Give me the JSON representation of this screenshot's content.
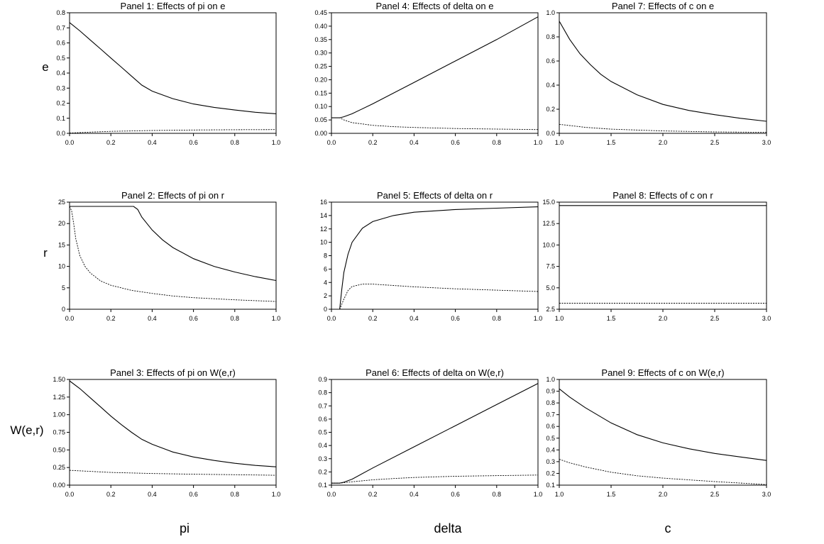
{
  "row_labels": [
    "e",
    "r",
    "W(e,r)"
  ],
  "column_labels": [
    "pi",
    "delta",
    "c"
  ],
  "chart_data": [
    {
      "type": "line",
      "title": "Panel 1: Effects of pi on e",
      "xlim": [
        0,
        1
      ],
      "ylim": [
        0,
        0.8
      ],
      "xticks": [
        "0.0",
        "0.2",
        "0.4",
        "0.6",
        "0.8",
        "1.0"
      ],
      "yticks": [
        "0.0",
        "0.1",
        "0.2",
        "0.3",
        "0.4",
        "0.5",
        "0.6",
        "0.7",
        "0.8"
      ],
      "series": [
        {
          "style": "solid",
          "x": [
            0,
            0.05,
            0.1,
            0.15,
            0.2,
            0.25,
            0.3,
            0.35,
            0.4,
            0.5,
            0.6,
            0.7,
            0.8,
            0.9,
            1.0
          ],
          "y": [
            0.735,
            0.68,
            0.62,
            0.56,
            0.5,
            0.44,
            0.38,
            0.32,
            0.28,
            0.23,
            0.195,
            0.172,
            0.155,
            0.14,
            0.13
          ]
        },
        {
          "style": "dashed",
          "x": [
            0,
            0.1,
            0.2,
            0.4,
            0.6,
            0.8,
            1.0
          ],
          "y": [
            0.002,
            0.008,
            0.013,
            0.019,
            0.022,
            0.024,
            0.025
          ]
        }
      ]
    },
    {
      "type": "line",
      "title": "Panel 2: Effects of pi on r",
      "xlim": [
        0,
        1
      ],
      "ylim": [
        0,
        25
      ],
      "xticks": [
        "0.0",
        "0.2",
        "0.4",
        "0.6",
        "0.8",
        "1.0"
      ],
      "yticks": [
        "0",
        "5",
        "10",
        "15",
        "20",
        "25"
      ],
      "series": [
        {
          "style": "solid",
          "x": [
            0,
            0.1,
            0.2,
            0.3,
            0.31,
            0.33,
            0.35,
            0.4,
            0.45,
            0.5,
            0.6,
            0.7,
            0.8,
            0.9,
            1.0
          ],
          "y": [
            24,
            24,
            24,
            24,
            24,
            23.3,
            21.5,
            18.5,
            16.2,
            14.4,
            11.8,
            10,
            8.7,
            7.6,
            6.7
          ]
        },
        {
          "style": "dashed",
          "x": [
            0,
            0.01,
            0.02,
            0.03,
            0.05,
            0.075,
            0.1,
            0.15,
            0.2,
            0.3,
            0.4,
            0.5,
            0.6,
            0.8,
            1.0
          ],
          "y": [
            24,
            23,
            20,
            16.5,
            12.5,
            10,
            8.5,
            6.6,
            5.6,
            4.4,
            3.7,
            3.1,
            2.7,
            2.2,
            1.8
          ]
        }
      ]
    },
    {
      "type": "line",
      "title": "Panel 3: Effects of pi on W(e,r)",
      "xlim": [
        0,
        1
      ],
      "ylim": [
        0,
        1.5
      ],
      "xticks": [
        "0.0",
        "0.2",
        "0.4",
        "0.6",
        "0.8",
        "1.0"
      ],
      "yticks": [
        "0.00",
        "0.25",
        "0.50",
        "0.75",
        "1.00",
        "1.25",
        "1.50"
      ],
      "series": [
        {
          "style": "solid",
          "x": [
            0,
            0.05,
            0.1,
            0.15,
            0.2,
            0.25,
            0.3,
            0.35,
            0.4,
            0.5,
            0.6,
            0.7,
            0.8,
            0.9,
            1.0
          ],
          "y": [
            1.48,
            1.37,
            1.24,
            1.11,
            0.98,
            0.86,
            0.75,
            0.65,
            0.58,
            0.47,
            0.4,
            0.35,
            0.31,
            0.28,
            0.26
          ]
        },
        {
          "style": "dashed",
          "x": [
            0,
            0.2,
            0.4,
            0.6,
            0.8,
            1.0
          ],
          "y": [
            0.21,
            0.18,
            0.165,
            0.155,
            0.148,
            0.14
          ]
        }
      ]
    },
    {
      "type": "line",
      "title": "Panel 4: Effects of delta on e",
      "xlim": [
        0,
        1
      ],
      "ylim": [
        0,
        0.45
      ],
      "xticks": [
        "0.0",
        "0.2",
        "0.4",
        "0.6",
        "0.8",
        "1.0"
      ],
      "yticks": [
        "0.00",
        "0.05",
        "0.10",
        "0.15",
        "0.20",
        "0.25",
        "0.30",
        "0.35",
        "0.40",
        "0.45"
      ],
      "series": [
        {
          "style": "solid",
          "x": [
            0,
            0.04,
            0.06,
            0.1,
            0.2,
            0.4,
            0.6,
            0.8,
            1.0
          ],
          "y": [
            0.058,
            0.058,
            0.062,
            0.073,
            0.11,
            0.19,
            0.27,
            0.35,
            0.435
          ]
        },
        {
          "style": "dashed",
          "x": [
            0,
            0.04,
            0.06,
            0.1,
            0.2,
            0.3,
            0.4,
            0.6,
            0.8,
            1.0
          ],
          "y": [
            0.058,
            0.058,
            0.05,
            0.04,
            0.03,
            0.025,
            0.022,
            0.018,
            0.016,
            0.014
          ]
        }
      ]
    },
    {
      "type": "line",
      "title": "Panel 5: Effects of delta on r",
      "xlim": [
        0,
        1
      ],
      "ylim": [
        0,
        16
      ],
      "xticks": [
        "0.0",
        "0.2",
        "0.4",
        "0.6",
        "0.8",
        "1.0"
      ],
      "yticks": [
        "0",
        "2",
        "4",
        "6",
        "8",
        "10",
        "12",
        "14",
        "16"
      ],
      "series": [
        {
          "style": "solid",
          "x": [
            0.04,
            0.05,
            0.06,
            0.08,
            0.1,
            0.15,
            0.2,
            0.3,
            0.4,
            0.6,
            0.8,
            1.0
          ],
          "y": [
            0,
            3,
            5.5,
            8.2,
            10,
            12.1,
            13.1,
            14,
            14.5,
            14.9,
            15.1,
            15.3
          ]
        },
        {
          "style": "dashed",
          "x": [
            0.04,
            0.06,
            0.08,
            0.1,
            0.15,
            0.2,
            0.3,
            0.4,
            0.6,
            0.8,
            1.0
          ],
          "y": [
            0,
            1.5,
            2.8,
            3.4,
            3.75,
            3.75,
            3.55,
            3.35,
            3.05,
            2.85,
            2.65
          ]
        }
      ]
    },
    {
      "type": "line",
      "title": "Panel 6: Effects of delta on W(e,r)",
      "xlim": [
        0,
        1
      ],
      "ylim": [
        0.1,
        0.9
      ],
      "xticks": [
        "0.0",
        "0.2",
        "0.4",
        "0.6",
        "0.8",
        "1.0"
      ],
      "yticks": [
        "0.1",
        "0.2",
        "0.3",
        "0.4",
        "0.5",
        "0.6",
        "0.7",
        "0.8",
        "0.9"
      ],
      "series": [
        {
          "style": "solid",
          "x": [
            0,
            0.04,
            0.06,
            0.1,
            0.2,
            0.4,
            0.6,
            0.8,
            1.0
          ],
          "y": [
            0.115,
            0.115,
            0.122,
            0.145,
            0.23,
            0.39,
            0.55,
            0.71,
            0.87
          ]
        },
        {
          "style": "dashed",
          "x": [
            0,
            0.04,
            0.1,
            0.2,
            0.3,
            0.4,
            0.6,
            0.8,
            1.0
          ],
          "y": [
            0.115,
            0.115,
            0.125,
            0.14,
            0.15,
            0.158,
            0.167,
            0.172,
            0.176
          ]
        }
      ]
    },
    {
      "type": "line",
      "title": "Panel 7: Effects of c on e",
      "xlim": [
        1,
        3
      ],
      "ylim": [
        0,
        1
      ],
      "xticks": [
        "1.0",
        "1.5",
        "2.0",
        "2.5",
        "3.0"
      ],
      "yticks": [
        "0.0",
        "0.2",
        "0.4",
        "0.6",
        "0.8",
        "1.0"
      ],
      "series": [
        {
          "style": "solid",
          "x": [
            1,
            1.1,
            1.2,
            1.3,
            1.4,
            1.5,
            1.75,
            2,
            2.25,
            2.5,
            2.75,
            3
          ],
          "y": [
            0.93,
            0.78,
            0.66,
            0.57,
            0.49,
            0.43,
            0.32,
            0.24,
            0.19,
            0.155,
            0.125,
            0.1
          ]
        },
        {
          "style": "dashed",
          "x": [
            1,
            1.25,
            1.5,
            2,
            2.5,
            3
          ],
          "y": [
            0.075,
            0.05,
            0.035,
            0.02,
            0.012,
            0.008
          ]
        }
      ]
    },
    {
      "type": "line",
      "title": "Panel 8: Effects of c on r",
      "xlim": [
        1,
        3
      ],
      "ylim": [
        2.5,
        15
      ],
      "xticks": [
        "1.0",
        "1.5",
        "2.0",
        "2.5",
        "3.0"
      ],
      "yticks": [
        "2.5",
        "5.0",
        "7.5",
        "10.0",
        "12.5",
        "15.0"
      ],
      "series": [
        {
          "style": "solid",
          "x": [
            1,
            3
          ],
          "y": [
            14.6,
            14.6
          ]
        },
        {
          "style": "dashed",
          "x": [
            1,
            3
          ],
          "y": [
            3.2,
            3.2
          ]
        }
      ]
    },
    {
      "type": "line",
      "title": "Panel 9: Effects of c on W(e,r)",
      "xlim": [
        1,
        3
      ],
      "ylim": [
        0.1,
        1
      ],
      "xticks": [
        "1.0",
        "1.5",
        "2.0",
        "2.5",
        "3.0"
      ],
      "yticks": [
        "0.1",
        "0.2",
        "0.3",
        "0.4",
        "0.5",
        "0.6",
        "0.7",
        "0.8",
        "0.9",
        "1.0"
      ],
      "series": [
        {
          "style": "solid",
          "x": [
            1,
            1.1,
            1.25,
            1.5,
            1.75,
            2,
            2.25,
            2.5,
            2.75,
            3
          ],
          "y": [
            0.92,
            0.85,
            0.76,
            0.63,
            0.53,
            0.46,
            0.41,
            0.37,
            0.34,
            0.31
          ]
        },
        {
          "style": "dashed",
          "x": [
            1,
            1.1,
            1.25,
            1.5,
            1.75,
            2,
            2.5,
            3
          ],
          "y": [
            0.32,
            0.29,
            0.255,
            0.21,
            0.18,
            0.16,
            0.13,
            0.105
          ]
        }
      ]
    }
  ]
}
